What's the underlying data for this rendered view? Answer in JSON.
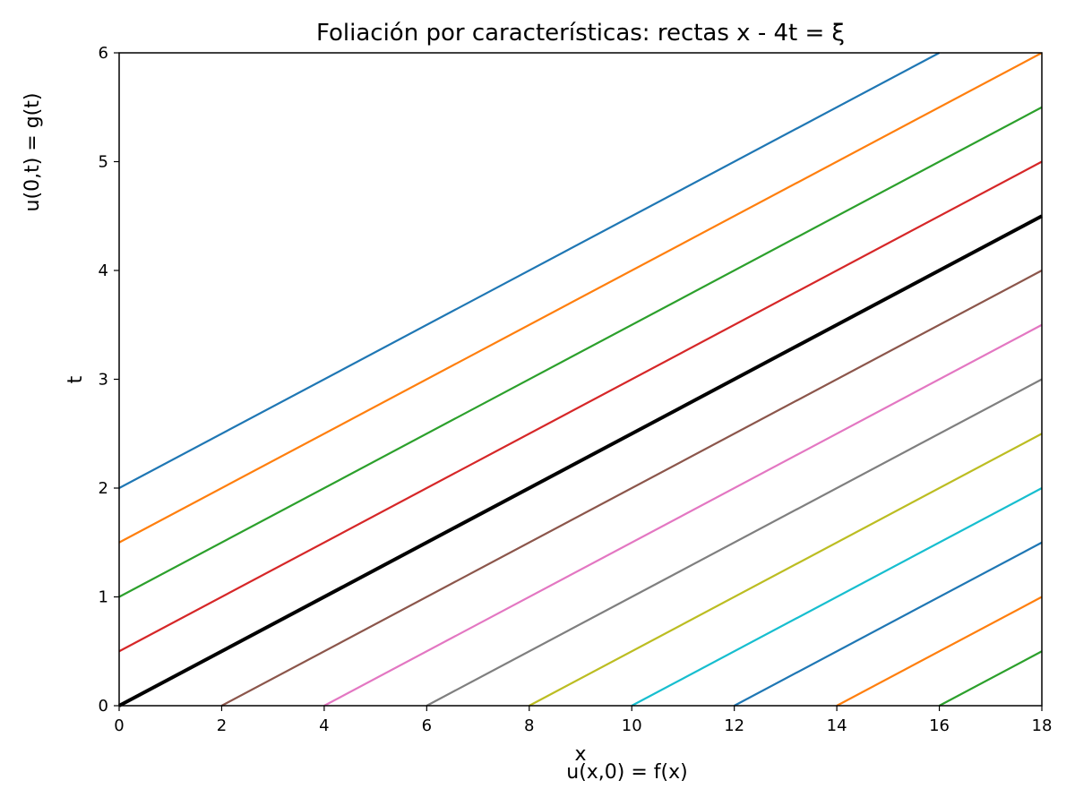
{
  "chart_data": {
    "type": "line",
    "title": "Foliación por características: rectas x - 4t = ξ",
    "xlabel": "x",
    "ylabel": "t",
    "xlim": [
      0,
      18
    ],
    "ylim": [
      0,
      6
    ],
    "xticks": [
      0,
      2,
      4,
      6,
      8,
      10,
      12,
      14,
      16,
      18
    ],
    "yticks": [
      0,
      1,
      2,
      3,
      4,
      5,
      6
    ],
    "grid": false,
    "series": [
      {
        "x": [
          0,
          16
        ],
        "y": [
          2,
          6
        ],
        "color": "#1f77b4",
        "width": "normal"
      },
      {
        "x": [
          0,
          18
        ],
        "y": [
          1.5,
          6
        ],
        "color": "#ff7f0e",
        "width": "normal"
      },
      {
        "x": [
          0,
          18
        ],
        "y": [
          1,
          5.5
        ],
        "color": "#2ca02c",
        "width": "normal"
      },
      {
        "x": [
          0,
          18
        ],
        "y": [
          0.5,
          5
        ],
        "color": "#d62728",
        "width": "normal"
      },
      {
        "x": [
          0,
          18
        ],
        "y": [
          0,
          4.5
        ],
        "color": "#000000",
        "width": "bold"
      },
      {
        "x": [
          2,
          18
        ],
        "y": [
          0,
          4
        ],
        "color": "#8c564b",
        "width": "normal"
      },
      {
        "x": [
          4,
          18
        ],
        "y": [
          0,
          3.5
        ],
        "color": "#e377c2",
        "width": "normal"
      },
      {
        "x": [
          6,
          18
        ],
        "y": [
          0,
          3
        ],
        "color": "#7f7f7f",
        "width": "normal"
      },
      {
        "x": [
          8,
          18
        ],
        "y": [
          0,
          2.5
        ],
        "color": "#bcbd22",
        "width": "normal"
      },
      {
        "x": [
          10,
          18
        ],
        "y": [
          0,
          2
        ],
        "color": "#17becf",
        "width": "normal"
      },
      {
        "x": [
          12,
          18
        ],
        "y": [
          0,
          1.5
        ],
        "color": "#1f77b4",
        "width": "normal"
      },
      {
        "x": [
          14,
          18
        ],
        "y": [
          0,
          1
        ],
        "color": "#ff7f0e",
        "width": "normal"
      },
      {
        "x": [
          16,
          18
        ],
        "y": [
          0,
          0.5
        ],
        "color": "#2ca02c",
        "width": "normal"
      }
    ],
    "annotations": {
      "bottom": "u(x,0) = f(x)",
      "left": "u(0,t) = g(t)"
    }
  }
}
